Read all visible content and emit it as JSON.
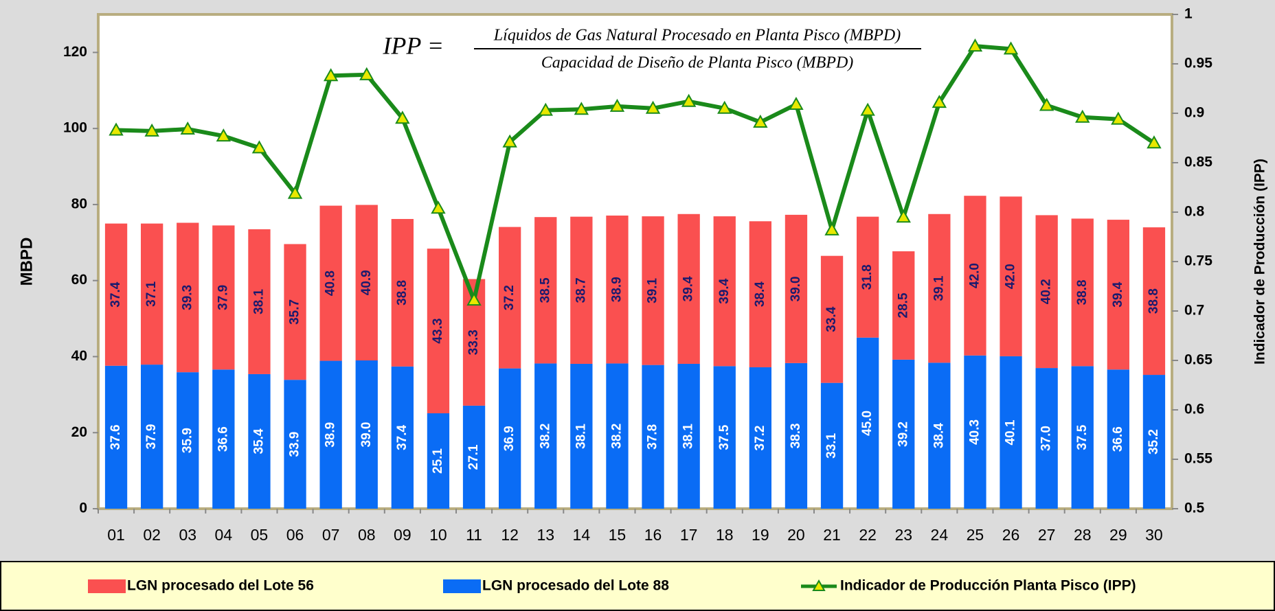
{
  "chart_data": {
    "type": "bar",
    "formula": {
      "lhs": "IPP =",
      "numerator": "Líquidos de Gas Natural Procesado en Planta Pisco (MBPD)",
      "denominator": "Capacidad de Diseño de Planta Pisco (MBPD)"
    },
    "y_label": "MBPD",
    "y2_label": "Indicador de Producción (IPP)",
    "categories": [
      "01",
      "02",
      "03",
      "04",
      "05",
      "06",
      "07",
      "08",
      "09",
      "10",
      "11",
      "12",
      "13",
      "14",
      "15",
      "16",
      "17",
      "18",
      "19",
      "20",
      "21",
      "22",
      "23",
      "24",
      "25",
      "26",
      "27",
      "28",
      "29",
      "30"
    ],
    "stacked": true,
    "grid": false,
    "series": [
      {
        "name": "LGN procesado del Lote 88",
        "color": "#0a6cf5",
        "type": "bar",
        "values": [
          37.6,
          37.9,
          35.9,
          36.6,
          35.4,
          33.9,
          38.9,
          39.0,
          37.4,
          25.1,
          27.1,
          36.9,
          38.2,
          38.1,
          38.2,
          37.8,
          38.1,
          37.5,
          37.2,
          38.3,
          33.1,
          45.0,
          39.2,
          38.4,
          40.3,
          40.1,
          37.0,
          37.5,
          36.6,
          35.2
        ],
        "value_labels": [
          "37.6",
          "37.9",
          "35.9",
          "36.6",
          "35.4",
          "33.9",
          "38.9",
          "39.0",
          "37.4",
          "25.1",
          "27.1",
          "36.9",
          "38.2",
          "38.1",
          "38.2",
          "37.8",
          "38.1",
          "37.5",
          "37.2",
          "38.3",
          "33.1",
          "45.0",
          "39.2",
          "38.4",
          "40.3",
          "40.1",
          "37.0",
          "37.5",
          "36.6",
          "35.2"
        ]
      },
      {
        "name": "LGN procesado del Lote 56",
        "color": "#fa5050",
        "type": "bar",
        "values": [
          37.4,
          37.1,
          39.3,
          37.9,
          38.1,
          35.7,
          40.8,
          40.9,
          38.8,
          43.3,
          33.3,
          37.2,
          38.5,
          38.7,
          38.9,
          39.1,
          39.4,
          39.4,
          38.4,
          39.0,
          33.4,
          31.8,
          28.5,
          39.1,
          42.0,
          42.0,
          40.2,
          38.8,
          39.4,
          38.8
        ],
        "value_labels": [
          "37.4",
          "37.1",
          "39.3",
          "37.9",
          "38.1",
          "35.7",
          "40.8",
          "40.9",
          "38.8",
          "43.3",
          "33.3",
          "37.2",
          "38.5",
          "38.7",
          "38.9",
          "39.1",
          "39.4",
          "39.4",
          "38.4",
          "39.0",
          "33.4",
          "31.8",
          "28.5",
          "39.1",
          "42.0",
          "42.0",
          "40.2",
          "38.8",
          "39.4",
          "38.8"
        ]
      },
      {
        "name": "Indicador de Producción Planta Pisco (IPP)",
        "color": "#1a8a1a",
        "marker_color": "#e8e800",
        "type": "line",
        "axis": "y2",
        "values": [
          0.883,
          0.882,
          0.884,
          0.877,
          0.865,
          0.819,
          0.938,
          0.939,
          0.895,
          0.804,
          0.711,
          0.871,
          0.903,
          0.904,
          0.907,
          0.905,
          0.912,
          0.905,
          0.891,
          0.909,
          0.782,
          0.903,
          0.795,
          0.911,
          0.968,
          0.965,
          0.908,
          0.896,
          0.894,
          0.87
        ]
      }
    ],
    "legend_order": [
      1,
      0,
      2
    ],
    "ylim": [
      0,
      130
    ],
    "yticks": [
      0,
      20,
      40,
      60,
      80,
      100,
      120
    ],
    "y2lim": [
      0.5,
      1
    ],
    "y2ticks": [
      0.5,
      0.55,
      0.6,
      0.65,
      0.7,
      0.75,
      0.8,
      0.85,
      0.9,
      0.95,
      1
    ]
  }
}
